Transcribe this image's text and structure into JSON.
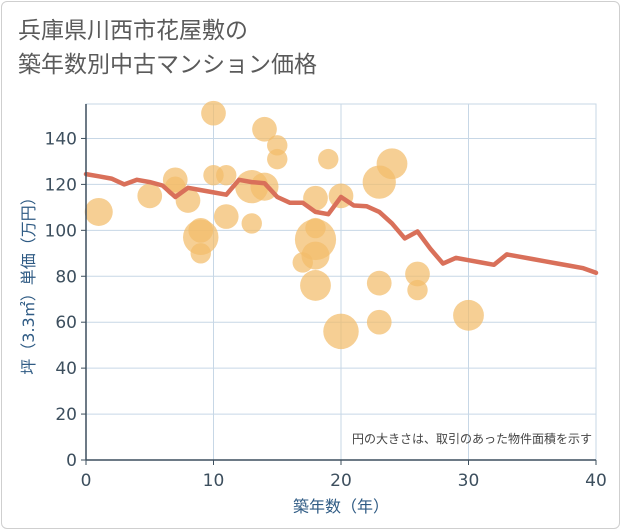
{
  "title": {
    "line1": "兵庫県川西市花屋敷の",
    "line2": "築年数別中古マンション価格"
  },
  "note": "円の大きさは、取引のあった物件面積を示す",
  "colors": {
    "bubble": "#f2bd6b",
    "line": "#d9705a",
    "grid": "#c7d7e6",
    "plot_bg": "#ffffff"
  },
  "chart_data": {
    "type": "scatter",
    "xlabel": "築年数（年）",
    "ylabel": "坪（3.3㎡）単価（万円）",
    "xlim": [
      0,
      40
    ],
    "ylim": [
      0,
      155
    ],
    "xticks": [
      0,
      10,
      20,
      30,
      40
    ],
    "yticks": [
      0,
      20,
      40,
      60,
      80,
      100,
      120,
      140
    ],
    "grid": true,
    "series": [
      {
        "type": "bubble",
        "points": [
          {
            "x": 1,
            "y": 108,
            "size": 3
          },
          {
            "x": 5,
            "y": 115,
            "size": 2
          },
          {
            "x": 7,
            "y": 122,
            "size": 2
          },
          {
            "x": 7,
            "y": 119,
            "size": 1
          },
          {
            "x": 8,
            "y": 113,
            "size": 2
          },
          {
            "x": 9,
            "y": 97,
            "size": 6
          },
          {
            "x": 9,
            "y": 100,
            "size": 2
          },
          {
            "x": 9,
            "y": 90,
            "size": 1
          },
          {
            "x": 10,
            "y": 151,
            "size": 2
          },
          {
            "x": 10,
            "y": 124,
            "size": 1
          },
          {
            "x": 11,
            "y": 124,
            "size": 1
          },
          {
            "x": 11,
            "y": 106,
            "size": 2
          },
          {
            "x": 13,
            "y": 119,
            "size": 5
          },
          {
            "x": 13,
            "y": 103,
            "size": 1
          },
          {
            "x": 14,
            "y": 144,
            "size": 2
          },
          {
            "x": 14,
            "y": 119,
            "size": 3
          },
          {
            "x": 15,
            "y": 137,
            "size": 1
          },
          {
            "x": 15,
            "y": 131,
            "size": 1
          },
          {
            "x": 17,
            "y": 86,
            "size": 1
          },
          {
            "x": 18,
            "y": 96,
            "size": 9
          },
          {
            "x": 18,
            "y": 114,
            "size": 2
          },
          {
            "x": 18,
            "y": 101,
            "size": 1
          },
          {
            "x": 18,
            "y": 89,
            "size": 3
          },
          {
            "x": 18,
            "y": 76,
            "size": 4
          },
          {
            "x": 19,
            "y": 131,
            "size": 1
          },
          {
            "x": 20,
            "y": 115,
            "size": 2
          },
          {
            "x": 20,
            "y": 56,
            "size": 6
          },
          {
            "x": 23,
            "y": 121,
            "size": 5
          },
          {
            "x": 23,
            "y": 77,
            "size": 2
          },
          {
            "x": 23,
            "y": 60,
            "size": 2
          },
          {
            "x": 24,
            "y": 129,
            "size": 4
          },
          {
            "x": 26,
            "y": 81,
            "size": 2
          },
          {
            "x": 26,
            "y": 74,
            "size": 1
          },
          {
            "x": 30,
            "y": 63,
            "size": 4
          }
        ]
      },
      {
        "type": "line",
        "x": [
          0,
          1,
          2,
          3,
          4,
          5,
          6,
          7,
          8,
          9,
          10,
          11,
          12,
          13,
          14,
          15,
          16,
          17,
          18,
          19,
          20,
          21,
          22,
          23,
          24,
          25,
          26,
          27,
          28,
          29,
          30,
          31,
          32,
          33,
          34,
          35,
          36,
          37,
          38,
          39,
          40
        ],
        "y": [
          124.5,
          123.5,
          122.5,
          120,
          122,
          121,
          119.5,
          114.5,
          118.5,
          117.5,
          116.5,
          115.5,
          122,
          121,
          120.5,
          114.5,
          112,
          112,
          108,
          107,
          114.5,
          110.8,
          110.5,
          108,
          103,
          96.5,
          99.5,
          92,
          85.5,
          88,
          87,
          86,
          85,
          89.5,
          88.5,
          87.5,
          86.5,
          85.5,
          84.5,
          83.5,
          81.5
        ]
      }
    ]
  }
}
